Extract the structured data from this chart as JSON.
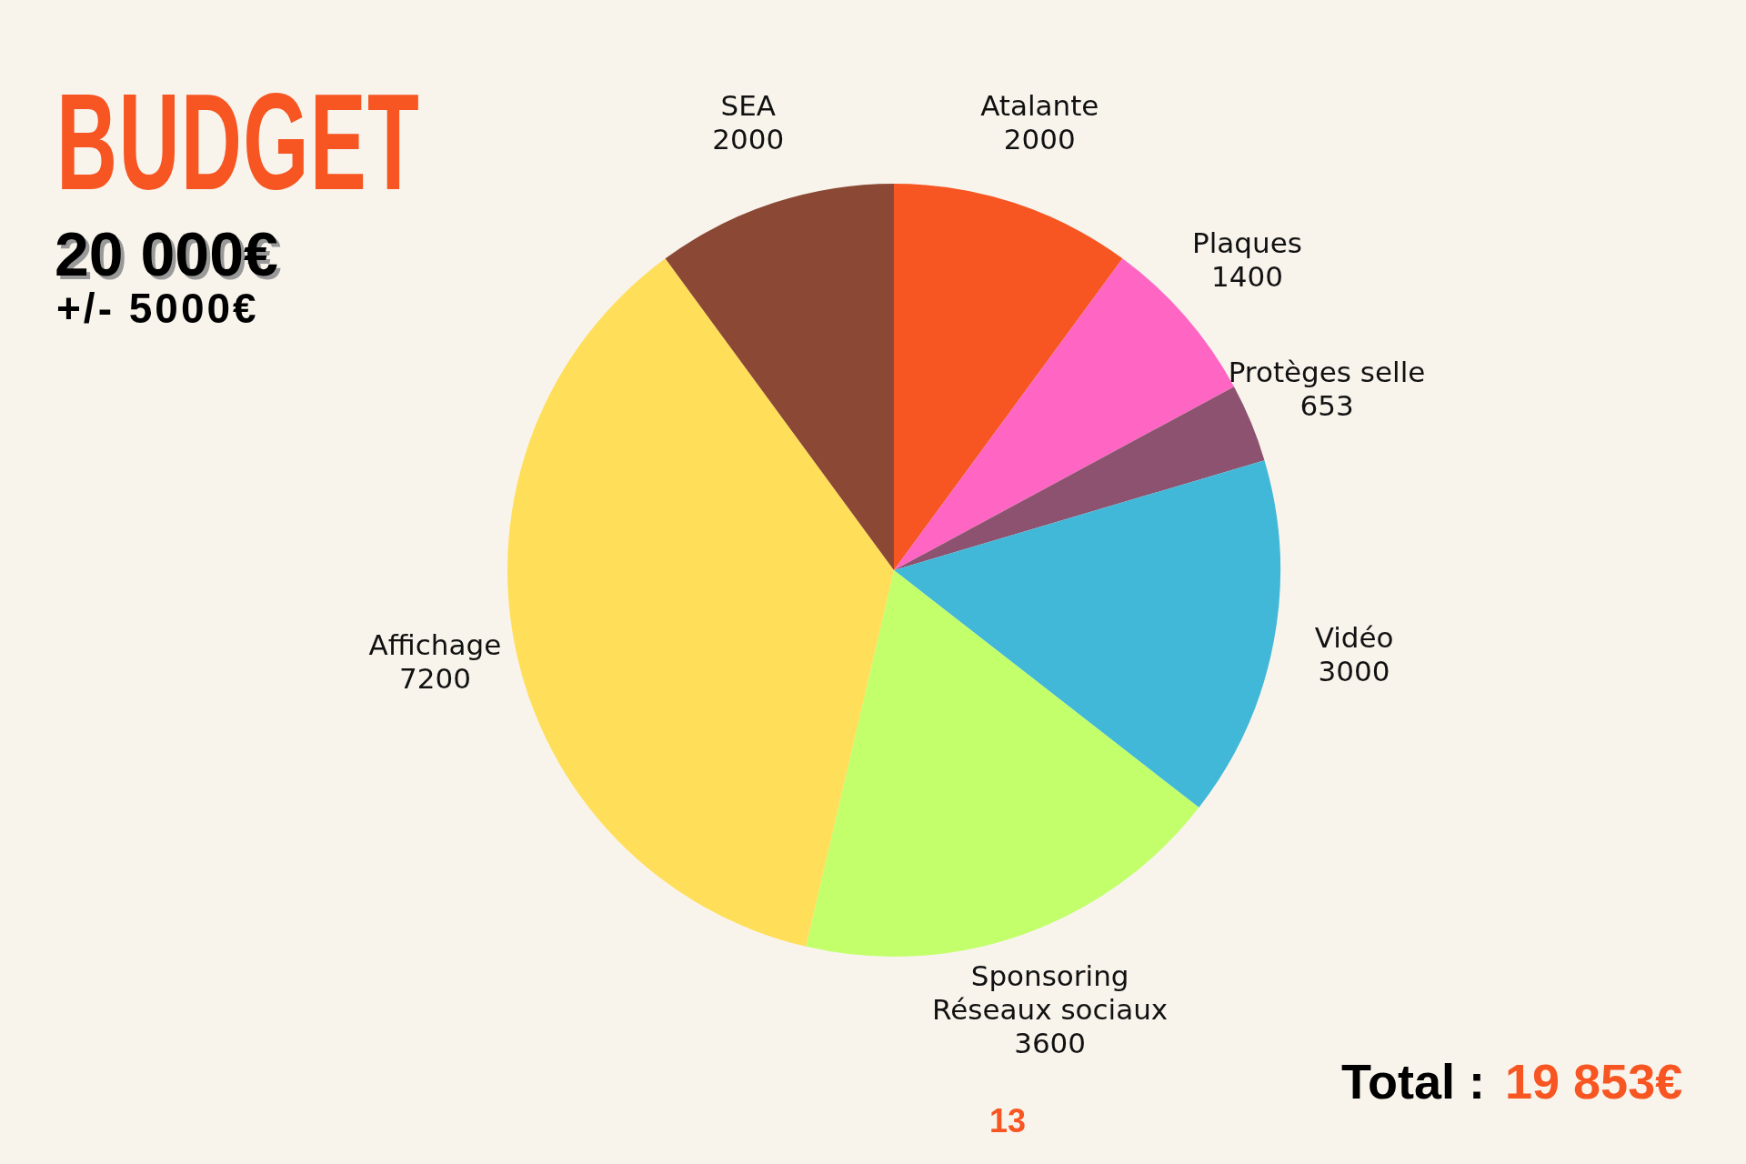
{
  "chart_data": {
    "type": "pie",
    "title": "BUDGET",
    "categories": [
      "Atalante",
      "Plaques",
      "Protèges selle",
      "Vidéo",
      "Sponsoring\nRéseaux sociaux",
      "Affichage",
      "SEA"
    ],
    "values": [
      2000,
      1400,
      653,
      3000,
      3600,
      7200,
      2000
    ],
    "colors": [
      "#f75522",
      "#ff66c4",
      "#8c5270",
      "#42b8d8",
      "#c2ff6b",
      "#ffde59",
      "#8b4834"
    ],
    "data_labels": true,
    "legend": false,
    "annotations": [
      "20 000€",
      "+/- 5000€",
      "Total :",
      "19 853€",
      "13"
    ]
  }
}
